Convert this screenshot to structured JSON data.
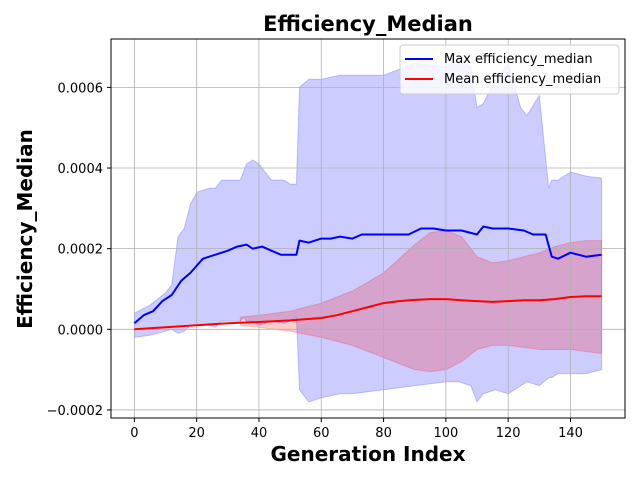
{
  "chart_data": {
    "type": "line",
    "title": "Efficiency_Median",
    "xlabel": "Generation Index",
    "ylabel": "Efficiency_Median",
    "xlim": [
      -7.5,
      157.5
    ],
    "ylim": [
      -0.00022,
      0.00072
    ],
    "xticks": [
      0,
      20,
      40,
      60,
      80,
      100,
      120,
      140
    ],
    "xtick_labels": [
      "0",
      "20",
      "40",
      "60",
      "80",
      "100",
      "120",
      "140"
    ],
    "yticks": [
      -0.0002,
      0.0,
      0.0002,
      0.0004,
      0.0006
    ],
    "ytick_labels": [
      "−0.0002",
      "0.0000",
      "0.0002",
      "0.0004",
      "0.0006"
    ],
    "grid": true,
    "legend_position": "top-right",
    "series": [
      {
        "name": "Max efficiency_median",
        "color": "#0000ff",
        "x": [
          0,
          3,
          6,
          9,
          12,
          15,
          18,
          22,
          26,
          30,
          33,
          36,
          38,
          41,
          44,
          47,
          50,
          52,
          53,
          56,
          60,
          63,
          66,
          70,
          73,
          76,
          80,
          84,
          88,
          92,
          96,
          100,
          105,
          110,
          112,
          115,
          120,
          125,
          128,
          132,
          134,
          136,
          140,
          145,
          150
        ],
        "y": [
          1.5e-05,
          3.5e-05,
          4.5e-05,
          7e-05,
          8.5e-05,
          0.00012,
          0.00014,
          0.000175,
          0.000185,
          0.000195,
          0.000205,
          0.00021,
          0.0002,
          0.000205,
          0.000195,
          0.000185,
          0.000185,
          0.000185,
          0.00022,
          0.000215,
          0.000225,
          0.000225,
          0.00023,
          0.000225,
          0.000235,
          0.000235,
          0.000235,
          0.000235,
          0.000235,
          0.00025,
          0.00025,
          0.000245,
          0.000245,
          0.000235,
          0.000255,
          0.00025,
          0.00025,
          0.000245,
          0.000235,
          0.000235,
          0.00018,
          0.000175,
          0.00019,
          0.00018,
          0.000185
        ]
      },
      {
        "name": "Mean efficiency_median",
        "color": "#ff0000",
        "x": [
          0,
          10,
          20,
          30,
          40,
          50,
          60,
          65,
          70,
          75,
          80,
          85,
          90,
          95,
          100,
          105,
          110,
          115,
          120,
          125,
          130,
          135,
          140,
          145,
          150
        ],
        "y": [
          0.0,
          5e-06,
          1e-05,
          1.5e-05,
          1.8e-05,
          2.2e-05,
          2.8e-05,
          3.5e-05,
          4.5e-05,
          5.5e-05,
          6.5e-05,
          7e-05,
          7.3e-05,
          7.5e-05,
          7.5e-05,
          7.2e-05,
          7e-05,
          6.8e-05,
          7e-05,
          7.2e-05,
          7.2e-05,
          7.5e-05,
          8e-05,
          8.2e-05,
          8.2e-05
        ]
      }
    ],
    "bands": [
      {
        "of": "Max efficiency_median",
        "color": "#0000ff",
        "opacity": 0.2,
        "x": [
          0,
          5,
          10,
          12,
          14,
          16,
          18,
          20,
          24,
          26,
          28,
          32,
          34,
          35,
          36,
          38,
          40,
          44,
          48,
          50,
          52,
          53,
          56,
          60,
          66,
          70,
          80,
          90,
          100,
          104,
          108,
          110,
          112,
          116,
          120,
          124,
          126,
          130,
          133,
          134,
          136,
          140,
          145,
          150
        ],
        "upper": [
          4e-05,
          6e-05,
          9e-05,
          0.00011,
          0.00023,
          0.00025,
          0.00031,
          0.00034,
          0.00035,
          0.00035,
          0.00037,
          0.00037,
          0.00037,
          0.00039,
          0.00041,
          0.00042,
          0.00041,
          0.00037,
          0.00037,
          0.00036,
          0.00036,
          0.0006,
          0.00062,
          0.00062,
          0.00063,
          0.00063,
          0.00063,
          0.00066,
          0.00065,
          0.00067,
          0.00065,
          0.00055,
          0.00056,
          0.00062,
          0.00066,
          0.00055,
          0.00053,
          0.00058,
          0.00035,
          0.00037,
          0.00037,
          0.00039,
          0.00038,
          0.000375
        ],
        "lower": [
          -2e-05,
          -1.5e-05,
          -5e-06,
          0.0,
          -1e-05,
          -5e-06,
          1e-05,
          1e-05,
          1e-05,
          5e-06,
          2e-05,
          2e-05,
          2e-05,
          3e-05,
          2e-05,
          2e-05,
          1e-05,
          2e-05,
          1.5e-05,
          2e-05,
          3e-05,
          -0.00015,
          -0.00018,
          -0.00017,
          -0.00016,
          -0.00016,
          -0.00015,
          -0.00014,
          -0.00013,
          -0.00013,
          -0.00014,
          -0.00018,
          -0.00016,
          -0.00015,
          -0.00016,
          -0.00014,
          -0.00013,
          -0.00014,
          -0.00012,
          -0.00012,
          -0.00011,
          -0.00011,
          -0.00011,
          -0.0001
        ]
      },
      {
        "of": "Mean efficiency_median",
        "color": "#ff0000",
        "opacity": 0.2,
        "x": [
          34,
          40,
          50,
          60,
          70,
          80,
          90,
          95,
          100,
          105,
          110,
          115,
          120,
          125,
          130,
          135,
          140,
          145,
          150
        ],
        "upper": [
          3e-05,
          3.5e-05,
          4.5e-05,
          6.5e-05,
          9.5e-05,
          0.00014,
          0.00021,
          0.00024,
          0.000245,
          0.00023,
          0.00018,
          0.000165,
          0.00017,
          0.00018,
          0.00019,
          0.000205,
          0.000215,
          0.00022,
          0.00022
        ],
        "lower": [
          1e-05,
          5e-06,
          -5e-06,
          -2e-05,
          -4e-05,
          -7e-05,
          -0.0001,
          -0.000105,
          -0.0001,
          -8e-05,
          -5e-05,
          -4e-05,
          -4e-05,
          -4.5e-05,
          -5e-05,
          -5e-05,
          -5e-05,
          -5.5e-05,
          -6e-05
        ]
      }
    ]
  }
}
